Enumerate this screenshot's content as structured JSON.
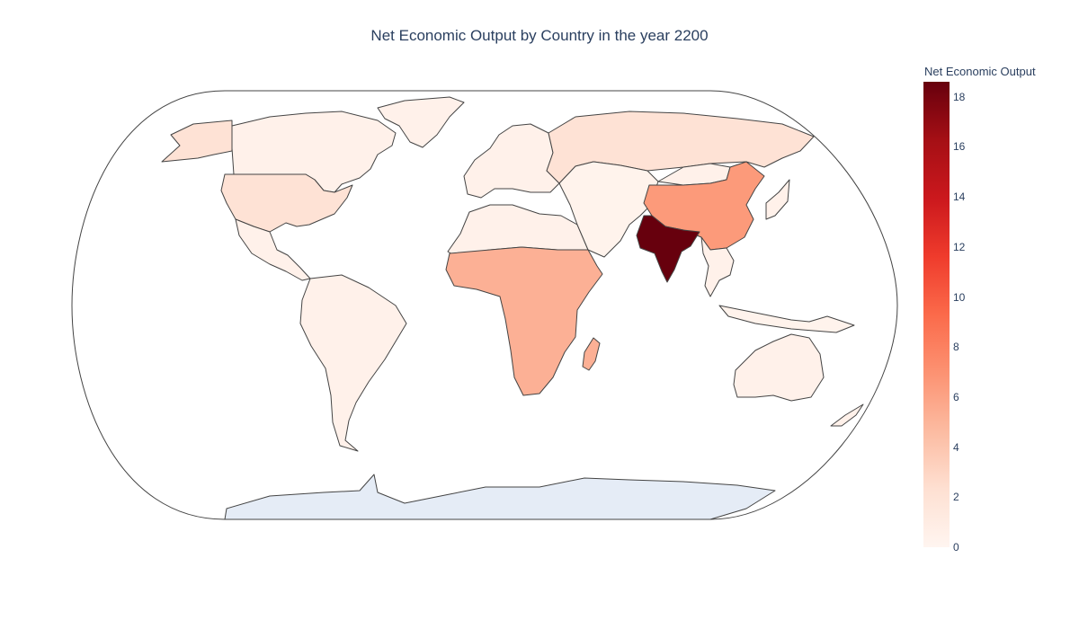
{
  "chart_data": {
    "type": "choropleth",
    "title": "Net Economic Output by Country in the year 2200",
    "projection": "natural earth",
    "colorscale": "Reds",
    "colorbar": {
      "title": "Net Economic Output",
      "range": [
        0,
        18.6
      ],
      "ticks": [
        "0",
        "2",
        "4",
        "6",
        "8",
        "10",
        "12",
        "14",
        "16",
        "18"
      ]
    },
    "regions": [
      {
        "name": "India",
        "value": 18.6
      },
      {
        "name": "China",
        "value": 6.9
      },
      {
        "name": "Sub-Saharan Africa",
        "value": 5.3
      },
      {
        "name": "Madagascar",
        "value": 5.3
      },
      {
        "name": "Russia",
        "value": 2.1
      },
      {
        "name": "United States",
        "value": 1.9
      },
      {
        "name": "Alaska",
        "value": 1.9
      },
      {
        "name": "Canada",
        "value": 0.6
      },
      {
        "name": "Greenland",
        "value": 0.6
      },
      {
        "name": "Europe",
        "value": 0.6
      },
      {
        "name": "North Africa",
        "value": 0.8
      },
      {
        "name": "Middle East",
        "value": 0.7
      },
      {
        "name": "Central Asia",
        "value": 0.7
      },
      {
        "name": "Mongolia",
        "value": 0.6
      },
      {
        "name": "Mexico & Central America",
        "value": 0.6
      },
      {
        "name": "South America",
        "value": 0.6
      },
      {
        "name": "Southeast Asia",
        "value": 0.7
      },
      {
        "name": "Indonesia",
        "value": 0.7
      },
      {
        "name": "Japan",
        "value": 0.6
      },
      {
        "name": "Australia",
        "value": 0.6
      },
      {
        "name": "New Zealand",
        "value": 0.6
      }
    ],
    "no_data_color": "#e5ecf6"
  },
  "colors": {
    "outline": "#444444",
    "no_data": "#e5ecf6",
    "text": "#2a3f5f"
  }
}
